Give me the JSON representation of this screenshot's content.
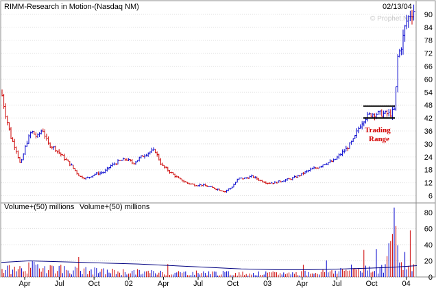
{
  "chart_data": [
    {
      "type": "bar",
      "title": "RIMM-Research in Motion-(Nasdaq NM)",
      "date_label": "02/13/04",
      "watermark": "© Prophet.Net",
      "ylim": [
        3,
        96
      ],
      "y_ticks": [
        "90",
        "84",
        "78",
        "72",
        "66",
        "60",
        "54",
        "48",
        "42",
        "36",
        "30",
        "24",
        "18",
        "12",
        "6"
      ],
      "x_ticks": [
        "Apr",
        "Jul",
        "Oct",
        "02",
        "Apr",
        "Jul",
        "Oct",
        "03",
        "Apr",
        "Jul",
        "Oct",
        "04"
      ],
      "annotation": {
        "text_line1": "Trading",
        "text_line2": "Range",
        "upper": 47.5,
        "lower": 42.0
      },
      "price_points": [
        [
          0,
          54
        ],
        [
          6,
          44
        ],
        [
          14,
          33
        ],
        [
          22,
          27
        ],
        [
          28,
          20
        ],
        [
          36,
          30
        ],
        [
          44,
          36
        ],
        [
          52,
          33
        ],
        [
          60,
          37
        ],
        [
          68,
          30
        ],
        [
          78,
          28
        ],
        [
          90,
          24
        ],
        [
          102,
          20
        ],
        [
          114,
          15
        ],
        [
          124,
          14
        ],
        [
          136,
          16
        ],
        [
          150,
          17
        ],
        [
          160,
          20
        ],
        [
          172,
          22
        ],
        [
          182,
          23
        ],
        [
          192,
          21
        ],
        [
          204,
          24
        ],
        [
          214,
          26
        ],
        [
          224,
          27
        ],
        [
          234,
          20
        ],
        [
          246,
          17
        ],
        [
          258,
          14
        ],
        [
          270,
          12
        ],
        [
          282,
          11
        ],
        [
          292,
          11
        ],
        [
          304,
          10
        ],
        [
          316,
          9
        ],
        [
          326,
          8
        ],
        [
          336,
          10
        ],
        [
          346,
          14
        ],
        [
          354,
          14
        ],
        [
          366,
          15
        ],
        [
          378,
          13
        ],
        [
          388,
          12
        ],
        [
          398,
          12
        ],
        [
          410,
          13
        ],
        [
          424,
          14
        ],
        [
          438,
          16
        ],
        [
          450,
          18
        ],
        [
          460,
          19
        ],
        [
          472,
          21
        ],
        [
          484,
          22
        ],
        [
          494,
          25
        ],
        [
          504,
          28
        ],
        [
          514,
          32
        ],
        [
          522,
          38
        ],
        [
          530,
          42
        ],
        [
          540,
          44
        ],
        [
          550,
          44
        ],
        [
          560,
          44
        ],
        [
          568,
          44
        ],
        [
          574,
          46
        ],
        [
          578,
          70
        ],
        [
          584,
          76
        ],
        [
          590,
          86
        ],
        [
          596,
          90
        ],
        [
          602,
          92
        ],
        [
          606,
          93
        ]
      ],
      "bar_colors": {
        "up": "#0000cc",
        "down": "#cc0000"
      }
    },
    {
      "type": "bar",
      "title": "Volume+(50) millions",
      "title_repeat": "Volume+(50) millions",
      "ylim": [
        0,
        90
      ],
      "y_ticks": [
        "80",
        "60",
        "40",
        "20",
        "0"
      ],
      "x_ticks": [
        "Apr",
        "Jul",
        "Oct",
        "02",
        "Apr",
        "Jul",
        "Oct",
        "03",
        "Apr",
        "Jul",
        "Oct",
        "04"
      ],
      "volume_points": [
        [
          0,
          10
        ],
        [
          30,
          12
        ],
        [
          60,
          16
        ],
        [
          100,
          10
        ],
        [
          150,
          8
        ],
        [
          200,
          7
        ],
        [
          250,
          6
        ],
        [
          300,
          6
        ],
        [
          350,
          5
        ],
        [
          400,
          5
        ],
        [
          450,
          6
        ],
        [
          500,
          10
        ],
        [
          540,
          14
        ],
        [
          560,
          12
        ],
        [
          574,
          86
        ],
        [
          580,
          30
        ],
        [
          590,
          26
        ],
        [
          600,
          20
        ],
        [
          606,
          16
        ]
      ],
      "ma_points": [
        [
          0,
          18
        ],
        [
          20,
          19
        ],
        [
          40,
          20
        ],
        [
          80,
          19
        ],
        [
          120,
          18
        ],
        [
          160,
          17
        ],
        [
          200,
          16
        ],
        [
          250,
          14
        ],
        [
          300,
          12
        ],
        [
          350,
          10
        ],
        [
          400,
          9
        ],
        [
          450,
          9
        ],
        [
          500,
          10
        ],
        [
          540,
          11
        ],
        [
          570,
          12
        ],
        [
          606,
          14
        ]
      ]
    }
  ]
}
